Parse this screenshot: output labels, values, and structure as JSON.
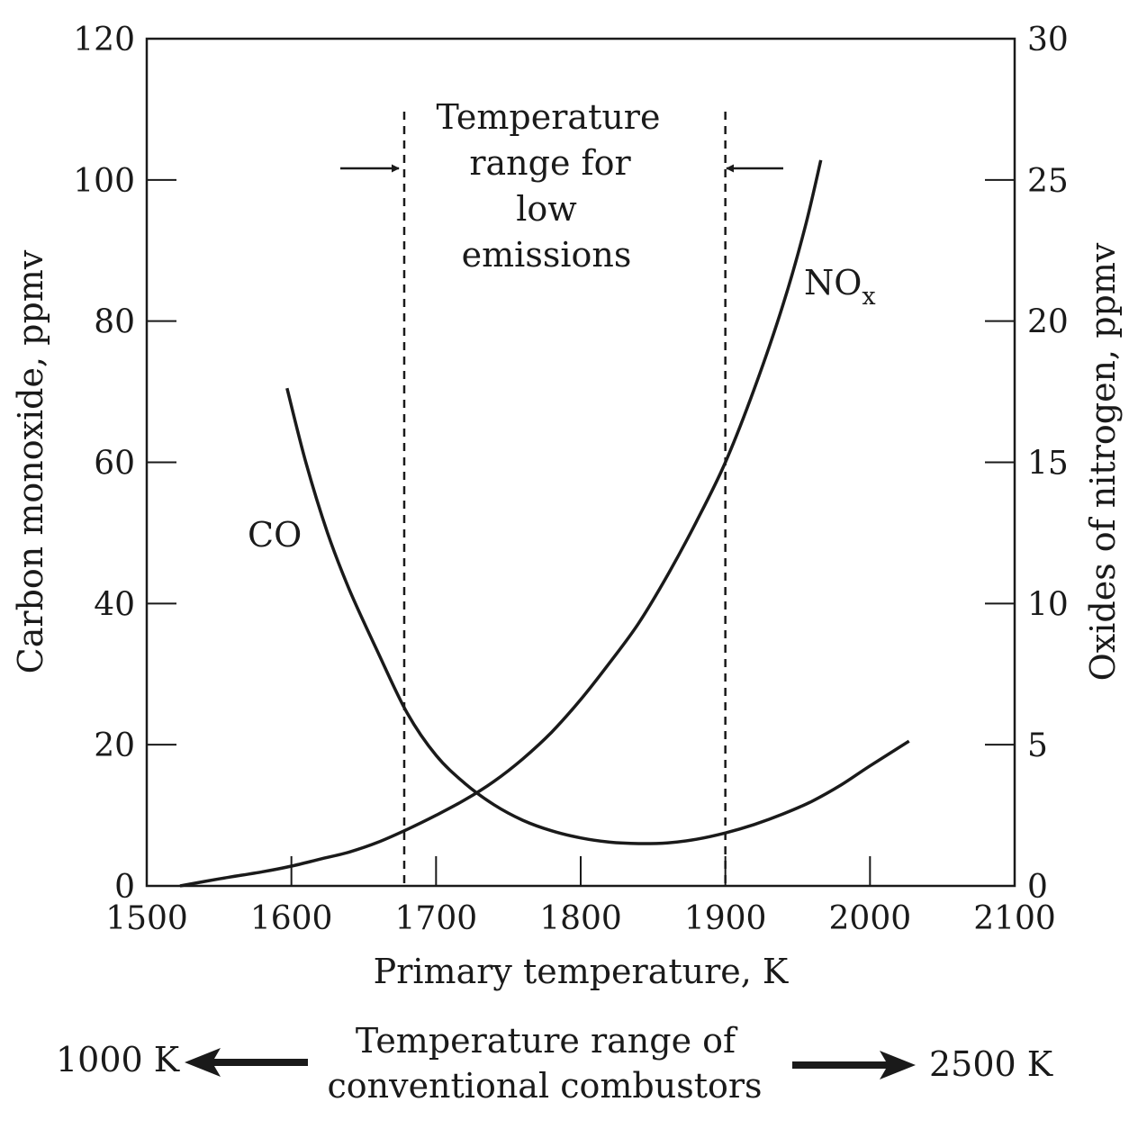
{
  "chart_data": {
    "type": "line",
    "xlabel": "Primary temperature, K",
    "ylabel_left": "Carbon monoxide, ppmv",
    "ylabel_right": "Oxides of nitrogen, ppmv",
    "xlim": [
      1500,
      2100
    ],
    "ylim_left": [
      0,
      120
    ],
    "ylim_right": [
      0,
      30
    ],
    "x_ticks": [
      "1500",
      "1600",
      "1700",
      "1800",
      "1900",
      "2000",
      "2100"
    ],
    "y_left_ticks": [
      "0",
      "20",
      "40",
      "60",
      "80",
      "100",
      "120"
    ],
    "y_right_ticks": [
      "0",
      "5",
      "10",
      "15",
      "20",
      "25",
      "30"
    ],
    "grid": false,
    "series": [
      {
        "name": "CO",
        "axis": "left",
        "x": [
          1597,
          1610,
          1625,
          1640,
          1660,
          1680,
          1700,
          1720,
          1740,
          1760,
          1780,
          1800,
          1820,
          1840,
          1860,
          1880,
          1900,
          1920,
          1940,
          1960,
          1980,
          2000,
          2027
        ],
        "y": [
          70.5,
          60,
          50,
          42,
          33,
          24.5,
          18.5,
          14.5,
          11.5,
          9.3,
          7.8,
          6.8,
          6.2,
          6,
          6.1,
          6.6,
          7.5,
          8.7,
          10.2,
          12,
          14.3,
          17,
          20.5
        ]
      },
      {
        "name": "NO<sub>x</sub>",
        "label_main": "NO",
        "label_sub": "x",
        "axis": "right",
        "x": [
          1523,
          1550,
          1580,
          1600,
          1620,
          1640,
          1660,
          1680,
          1700,
          1720,
          1740,
          1760,
          1780,
          1800,
          1820,
          1840,
          1860,
          1880,
          1900,
          1920,
          1940,
          1955,
          1966
        ],
        "y": [
          0,
          0.25,
          0.5,
          0.7,
          0.95,
          1.2,
          1.55,
          2,
          2.5,
          3.05,
          3.7,
          4.5,
          5.45,
          6.6,
          7.9,
          9.3,
          11,
          12.9,
          15,
          17.6,
          20.6,
          23.3,
          25.7
        ]
      }
    ],
    "vertical_markers": [
      1678,
      1900
    ],
    "annotations": {
      "co_label": "CO",
      "nox_label_main": "NO",
      "nox_label_sub": "x",
      "low_emissions_range": [
        "Temperature",
        "range for",
        "low",
        "emissions"
      ],
      "conventional_range": [
        "Temperature range of",
        "conventional combustors"
      ],
      "conventional_low": "1000 K",
      "conventional_high": "2500 K"
    }
  }
}
